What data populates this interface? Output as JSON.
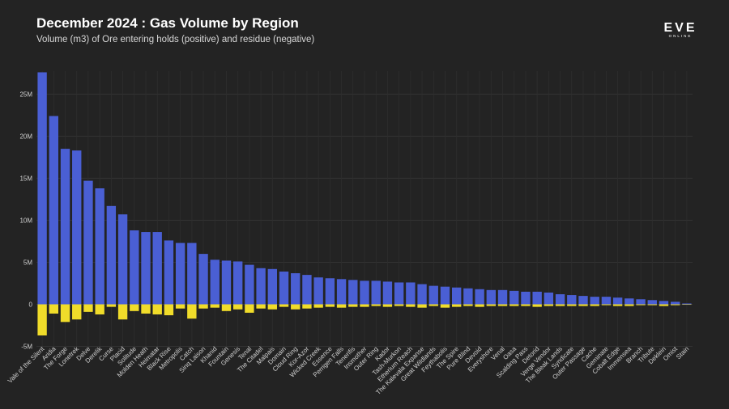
{
  "chart_data": {
    "type": "bar",
    "title": "December 2024 : Gas Volume by Region",
    "subtitle": "Volume (m3) of Ore entering holds (positive) and residue (negative)",
    "xlabel": "",
    "ylabel": "",
    "ylim": [
      -5000000,
      28000000
    ],
    "y_ticks": [
      -5000000,
      0,
      5000000,
      10000000,
      15000000,
      20000000,
      25000000
    ],
    "y_tick_labels": [
      "-5M",
      "0",
      "5M",
      "10M",
      "15M",
      "20M",
      "25M"
    ],
    "grid": true,
    "categories": [
      "Vale of the Silent",
      "Aridia",
      "The Forge",
      "Lonetrek",
      "Delve",
      "Derelik",
      "Curse",
      "Placid",
      "Solitude",
      "Molden Heath",
      "Heimatar",
      "Black Rise",
      "Metropolis",
      "Catch",
      "Sinq Laison",
      "Khanid",
      "Fountain",
      "Genesis",
      "Tenal",
      "The Citadel",
      "Malpais",
      "Domain",
      "Cloud Ring",
      "Kor-Azor",
      "Wicked Creek",
      "Essence",
      "Perrigen Falls",
      "Tenerifis",
      "Insmother",
      "Outer Ring",
      "Kador",
      "Tash-Murkon",
      "Etherium Reach",
      "The Kalevala Expanse",
      "Great Wildlands",
      "Feythabolis",
      "The Spire",
      "Pure Blind",
      "Devoid",
      "Everyshore",
      "Venal",
      "Oasa",
      "Scalding Pass",
      "Detorid",
      "Verge Vendor",
      "The Bleak Lands",
      "Syndicate",
      "Outer Passage",
      "Cache",
      "Geminate",
      "Cobalt Edge",
      "Immensea",
      "Branch",
      "Tribute",
      "Deklein",
      "Omist",
      "Stain"
    ],
    "series": [
      {
        "color": "#4a5fd4",
        "values": [
          27600000,
          22400000,
          18500000,
          18300000,
          14700000,
          13800000,
          11700000,
          10700000,
          8800000,
          8600000,
          8600000,
          7600000,
          7300000,
          7300000,
          6000000,
          5300000,
          5200000,
          5100000,
          4700000,
          4300000,
          4200000,
          3900000,
          3700000,
          3500000,
          3200000,
          3100000,
          3000000,
          2900000,
          2800000,
          2800000,
          2700000,
          2600000,
          2600000,
          2400000,
          2200000,
          2100000,
          2000000,
          1900000,
          1800000,
          1700000,
          1700000,
          1600000,
          1500000,
          1500000,
          1400000,
          1200000,
          1100000,
          1000000,
          900000,
          900000,
          800000,
          700000,
          600000,
          500000,
          400000,
          300000,
          100000
        ]
      },
      {
        "color": "#f0dc2a",
        "values": [
          -3700000,
          -1100000,
          -2100000,
          -1800000,
          -900000,
          -1200000,
          -300000,
          -1800000,
          -800000,
          -1100000,
          -1200000,
          -1300000,
          -500000,
          -1700000,
          -500000,
          -400000,
          -800000,
          -600000,
          -1000000,
          -500000,
          -600000,
          -300000,
          -600000,
          -500000,
          -400000,
          -300000,
          -400000,
          -300000,
          -300000,
          -200000,
          -300000,
          -200000,
          -300000,
          -400000,
          -200000,
          -400000,
          -300000,
          -200000,
          -300000,
          -200000,
          -200000,
          -200000,
          -200000,
          -300000,
          -200000,
          -200000,
          -200000,
          -200000,
          -200000,
          -100000,
          -200000,
          -200000,
          -100000,
          -100000,
          -200000,
          -100000,
          -50000
        ]
      }
    ]
  },
  "logo": {
    "name": "eve-online-logo",
    "text": "EVE",
    "subtext": "ONLINE"
  }
}
